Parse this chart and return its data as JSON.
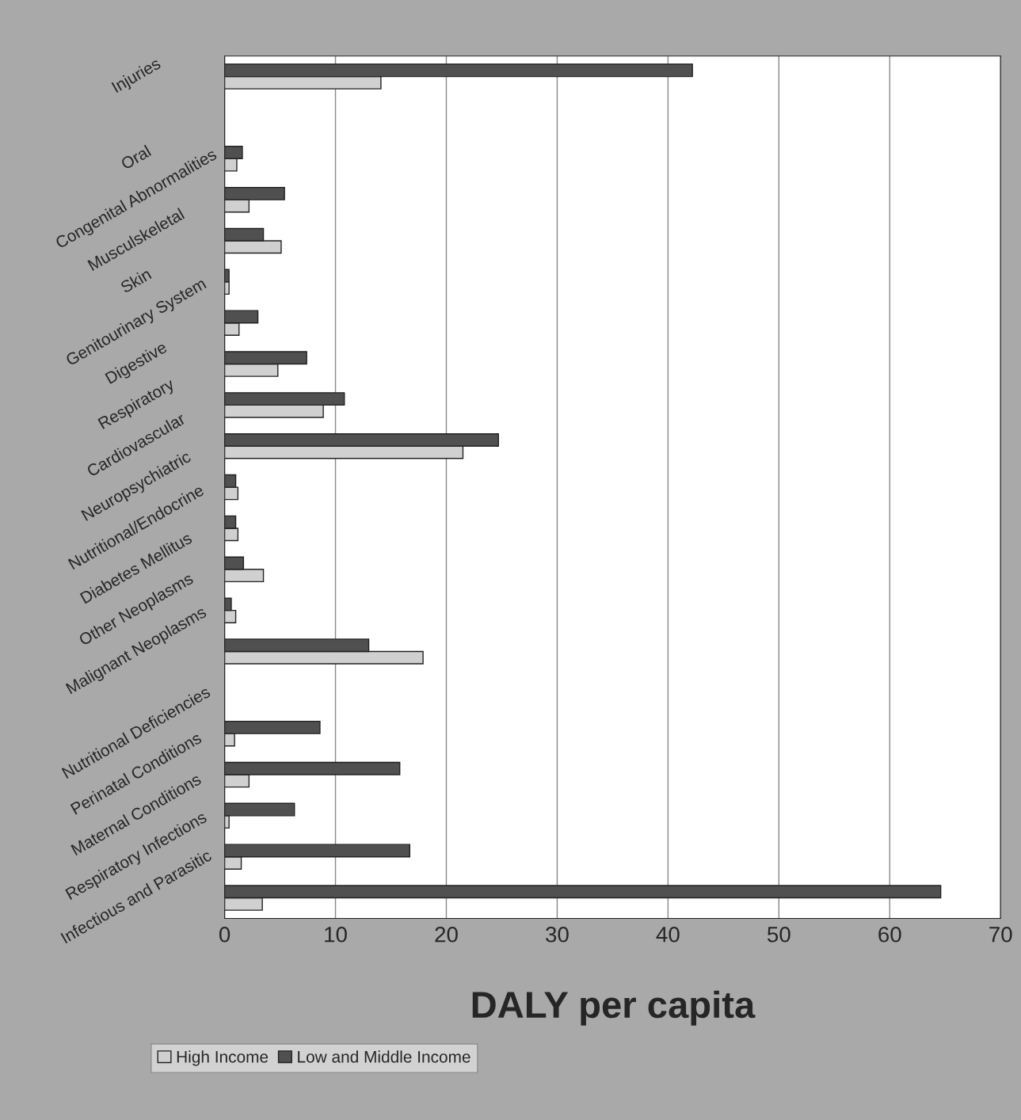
{
  "chart_data": {
    "type": "bar",
    "orientation": "horizontal",
    "xlabel": "DALY per capita",
    "categories": [
      "Injuries",
      null,
      "Oral",
      "Congenital Abnormalities",
      "Musculskeletal",
      "Skin",
      "Genitourinary System",
      "Digestive",
      "Respiratory",
      "Cardiovascular",
      "Neuropsychiatric",
      "Nutritional/Endocrine",
      "Diabetes Mellitus",
      "Other Neoplasms",
      "Malignant Neoplasms",
      null,
      "Nutritional Deficiencies",
      "Perinatal Conditions",
      "Maternal Conditions",
      "Respiratory Infections",
      "Infectious and Parasitic"
    ],
    "series": [
      {
        "name": "High Income",
        "color": "#d0d0d0",
        "values": [
          14.1,
          null,
          1.1,
          2.2,
          5.1,
          0.4,
          1.3,
          4.8,
          8.9,
          21.5,
          1.2,
          1.2,
          3.5,
          1.0,
          17.9,
          null,
          0.9,
          2.2,
          0.4,
          1.5,
          3.4
        ]
      },
      {
        "name": "Low and Middle Income",
        "color": "#505050",
        "values": [
          42.2,
          null,
          1.6,
          5.4,
          3.5,
          0.4,
          3.0,
          7.4,
          10.8,
          24.7,
          1.0,
          1.0,
          1.7,
          0.6,
          13.0,
          null,
          8.6,
          15.8,
          6.3,
          16.7,
          64.6
        ]
      }
    ],
    "xlim": [
      0,
      70
    ],
    "xticks": [
      0,
      10,
      20,
      30,
      40,
      50,
      60,
      70
    ],
    "grid": "x",
    "legend": "bottom left"
  }
}
